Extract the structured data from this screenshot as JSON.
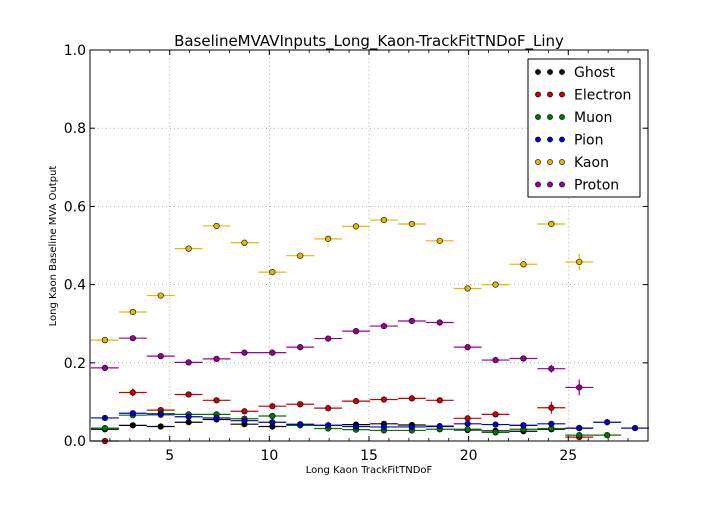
{
  "chart_data": {
    "type": "scatter",
    "title": "BaselineMVAVInputs_Long_Kaon-TrackFitTNDoF_Liny",
    "xlabel": "Long Kaon TrackFitTNDoF",
    "ylabel": "Long Kaon Baseline MVA Output",
    "xlim": [
      1,
      29
    ],
    "ylim": [
      0.0,
      1.0
    ],
    "x_ticks": [
      5,
      10,
      15,
      20,
      25
    ],
    "y_ticks": [
      "0.0",
      "0.2",
      "0.4",
      "0.6",
      "0.8",
      "1.0"
    ],
    "grid": true,
    "legend_position": "top-right",
    "series": [
      {
        "name": "Ghost",
        "color": "#000000",
        "bin_half_width": 0.7,
        "points": [
          {
            "x": 1.75,
            "y": 0.03,
            "err": 0.003
          },
          {
            "x": 3.15,
            "y": 0.04,
            "err": 0.003
          },
          {
            "x": 4.55,
            "y": 0.037,
            "err": 0.003
          },
          {
            "x": 5.95,
            "y": 0.048,
            "err": 0.003
          },
          {
            "x": 7.35,
            "y": 0.055,
            "err": 0.003
          },
          {
            "x": 8.75,
            "y": 0.043,
            "err": 0.003
          },
          {
            "x": 10.15,
            "y": 0.037,
            "err": 0.003
          },
          {
            "x": 11.55,
            "y": 0.042,
            "err": 0.003
          },
          {
            "x": 12.95,
            "y": 0.04,
            "err": 0.003
          },
          {
            "x": 14.35,
            "y": 0.042,
            "err": 0.003
          },
          {
            "x": 15.75,
            "y": 0.044,
            "err": 0.003
          },
          {
            "x": 17.15,
            "y": 0.041,
            "err": 0.003
          },
          {
            "x": 18.55,
            "y": 0.037,
            "err": 0.003
          },
          {
            "x": 19.95,
            "y": 0.028,
            "err": 0.003
          },
          {
            "x": 21.35,
            "y": 0.026,
            "err": 0.003
          },
          {
            "x": 22.75,
            "y": 0.025,
            "err": 0.003
          },
          {
            "x": 24.15,
            "y": 0.03,
            "err": 0.003
          },
          {
            "x": 25.55,
            "y": 0.033,
            "err": 0.004
          }
        ]
      },
      {
        "name": "Electron",
        "color": "#cc0000",
        "bin_half_width": 0.7,
        "points": [
          {
            "x": 1.75,
            "y": 0.0,
            "err": 0.003
          },
          {
            "x": 3.15,
            "y": 0.124,
            "err": 0.01
          },
          {
            "x": 4.55,
            "y": 0.079,
            "err": 0.006
          },
          {
            "x": 5.95,
            "y": 0.119,
            "err": 0.005
          },
          {
            "x": 7.35,
            "y": 0.104,
            "err": 0.005
          },
          {
            "x": 8.75,
            "y": 0.076,
            "err": 0.004
          },
          {
            "x": 10.15,
            "y": 0.089,
            "err": 0.004
          },
          {
            "x": 11.55,
            "y": 0.094,
            "err": 0.004
          },
          {
            "x": 12.95,
            "y": 0.084,
            "err": 0.004
          },
          {
            "x": 14.35,
            "y": 0.102,
            "err": 0.004
          },
          {
            "x": 15.75,
            "y": 0.106,
            "err": 0.004
          },
          {
            "x": 17.15,
            "y": 0.109,
            "err": 0.004
          },
          {
            "x": 18.55,
            "y": 0.104,
            "err": 0.004
          },
          {
            "x": 19.95,
            "y": 0.058,
            "err": 0.005
          },
          {
            "x": 21.35,
            "y": 0.068,
            "err": 0.005
          },
          {
            "x": 22.75,
            "y": 0.04,
            "err": 0.006
          },
          {
            "x": 24.15,
            "y": 0.085,
            "err": 0.015
          },
          {
            "x": 25.55,
            "y": 0.01,
            "err": 0.005
          }
        ]
      },
      {
        "name": "Muon",
        "color": "#007700",
        "bin_half_width": 0.7,
        "points": [
          {
            "x": 1.75,
            "y": 0.033,
            "err": 0.004
          },
          {
            "x": 3.15,
            "y": 0.066,
            "err": 0.005
          },
          {
            "x": 4.55,
            "y": 0.07,
            "err": 0.005
          },
          {
            "x": 5.95,
            "y": 0.068,
            "err": 0.005
          },
          {
            "x": 7.35,
            "y": 0.068,
            "err": 0.005
          },
          {
            "x": 8.75,
            "y": 0.057,
            "err": 0.004
          },
          {
            "x": 10.15,
            "y": 0.064,
            "err": 0.004
          },
          {
            "x": 11.55,
            "y": 0.04,
            "err": 0.004
          },
          {
            "x": 12.95,
            "y": 0.032,
            "err": 0.004
          },
          {
            "x": 14.35,
            "y": 0.029,
            "err": 0.004
          },
          {
            "x": 15.75,
            "y": 0.027,
            "err": 0.004
          },
          {
            "x": 17.15,
            "y": 0.027,
            "err": 0.004
          },
          {
            "x": 18.55,
            "y": 0.03,
            "err": 0.004
          },
          {
            "x": 19.95,
            "y": 0.03,
            "err": 0.004
          },
          {
            "x": 21.35,
            "y": 0.022,
            "err": 0.004
          },
          {
            "x": 22.75,
            "y": 0.03,
            "err": 0.004
          },
          {
            "x": 24.15,
            "y": 0.032,
            "err": 0.004
          },
          {
            "x": 25.55,
            "y": 0.015,
            "err": 0.004
          },
          {
            "x": 26.95,
            "y": 0.015,
            "err": 0.004
          }
        ]
      },
      {
        "name": "Pion",
        "color": "#0000cc",
        "bin_half_width": 0.7,
        "points": [
          {
            "x": 1.75,
            "y": 0.059,
            "err": 0.003
          },
          {
            "x": 3.15,
            "y": 0.071,
            "err": 0.003
          },
          {
            "x": 4.55,
            "y": 0.067,
            "err": 0.003
          },
          {
            "x": 5.95,
            "y": 0.062,
            "err": 0.003
          },
          {
            "x": 7.35,
            "y": 0.059,
            "err": 0.003
          },
          {
            "x": 8.75,
            "y": 0.052,
            "err": 0.003
          },
          {
            "x": 10.15,
            "y": 0.048,
            "err": 0.003
          },
          {
            "x": 11.55,
            "y": 0.043,
            "err": 0.003
          },
          {
            "x": 12.95,
            "y": 0.04,
            "err": 0.003
          },
          {
            "x": 14.35,
            "y": 0.037,
            "err": 0.003
          },
          {
            "x": 15.75,
            "y": 0.036,
            "err": 0.003
          },
          {
            "x": 17.15,
            "y": 0.036,
            "err": 0.003
          },
          {
            "x": 18.55,
            "y": 0.038,
            "err": 0.003
          },
          {
            "x": 19.95,
            "y": 0.044,
            "err": 0.003
          },
          {
            "x": 21.35,
            "y": 0.042,
            "err": 0.003
          },
          {
            "x": 22.75,
            "y": 0.04,
            "err": 0.003
          },
          {
            "x": 24.15,
            "y": 0.044,
            "err": 0.003
          },
          {
            "x": 25.55,
            "y": 0.033,
            "err": 0.003
          },
          {
            "x": 26.95,
            "y": 0.048,
            "err": 0.008
          },
          {
            "x": 28.35,
            "y": 0.033,
            "err": 0.003
          }
        ]
      },
      {
        "name": "Kaon",
        "color": "#e6b800",
        "bin_half_width": 0.7,
        "points": [
          {
            "x": 1.75,
            "y": 0.258,
            "err": 0.004
          },
          {
            "x": 3.15,
            "y": 0.33,
            "err": 0.004
          },
          {
            "x": 4.55,
            "y": 0.372,
            "err": 0.004
          },
          {
            "x": 5.95,
            "y": 0.492,
            "err": 0.004
          },
          {
            "x": 7.35,
            "y": 0.55,
            "err": 0.004
          },
          {
            "x": 8.75,
            "y": 0.507,
            "err": 0.004
          },
          {
            "x": 10.15,
            "y": 0.432,
            "err": 0.004
          },
          {
            "x": 11.55,
            "y": 0.474,
            "err": 0.004
          },
          {
            "x": 12.95,
            "y": 0.517,
            "err": 0.004
          },
          {
            "x": 14.35,
            "y": 0.549,
            "err": 0.004
          },
          {
            "x": 15.75,
            "y": 0.565,
            "err": 0.004
          },
          {
            "x": 17.15,
            "y": 0.555,
            "err": 0.004
          },
          {
            "x": 18.55,
            "y": 0.512,
            "err": 0.004
          },
          {
            "x": 19.95,
            "y": 0.39,
            "err": 0.005
          },
          {
            "x": 21.35,
            "y": 0.4,
            "err": 0.005
          },
          {
            "x": 22.75,
            "y": 0.452,
            "err": 0.006
          },
          {
            "x": 24.15,
            "y": 0.555,
            "err": 0.008
          },
          {
            "x": 25.55,
            "y": 0.458,
            "err": 0.02
          }
        ]
      },
      {
        "name": "Proton",
        "color": "#990099",
        "bin_half_width": 0.7,
        "points": [
          {
            "x": 1.75,
            "y": 0.187,
            "err": 0.005
          },
          {
            "x": 3.15,
            "y": 0.263,
            "err": 0.004
          },
          {
            "x": 4.55,
            "y": 0.217,
            "err": 0.004
          },
          {
            "x": 5.95,
            "y": 0.201,
            "err": 0.004
          },
          {
            "x": 7.35,
            "y": 0.21,
            "err": 0.004
          },
          {
            "x": 8.75,
            "y": 0.226,
            "err": 0.004
          },
          {
            "x": 10.15,
            "y": 0.226,
            "err": 0.004
          },
          {
            "x": 11.55,
            "y": 0.24,
            "err": 0.004
          },
          {
            "x": 12.95,
            "y": 0.262,
            "err": 0.004
          },
          {
            "x": 14.35,
            "y": 0.281,
            "err": 0.004
          },
          {
            "x": 15.75,
            "y": 0.294,
            "err": 0.004
          },
          {
            "x": 17.15,
            "y": 0.307,
            "err": 0.004
          },
          {
            "x": 18.55,
            "y": 0.303,
            "err": 0.004
          },
          {
            "x": 19.95,
            "y": 0.24,
            "err": 0.005
          },
          {
            "x": 21.35,
            "y": 0.207,
            "err": 0.005
          },
          {
            "x": 22.75,
            "y": 0.211,
            "err": 0.006
          },
          {
            "x": 24.15,
            "y": 0.185,
            "err": 0.01
          },
          {
            "x": 25.55,
            "y": 0.137,
            "err": 0.02
          }
        ]
      }
    ]
  }
}
